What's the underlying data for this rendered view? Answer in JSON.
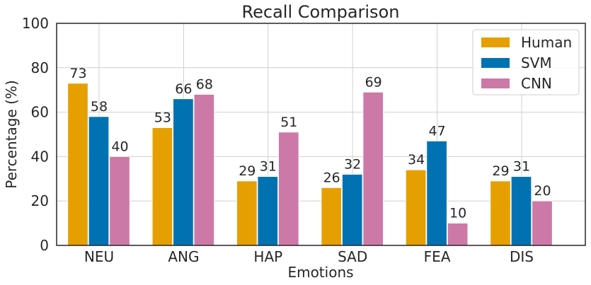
{
  "chart_data": {
    "type": "bar",
    "title": "Recall Comparison",
    "xlabel": "Emotions",
    "ylabel": "Percentage (%)",
    "categories": [
      "NEU",
      "ANG",
      "HAP",
      "SAD",
      "FEA",
      "DIS"
    ],
    "series": [
      {
        "name": "Human",
        "color": "#e69f00",
        "values": [
          73,
          53,
          29,
          26,
          34,
          29
        ]
      },
      {
        "name": "SVM",
        "color": "#0072b2",
        "values": [
          58,
          66,
          31,
          32,
          47,
          31
        ]
      },
      {
        "name": "CNN",
        "color": "#cc79a7",
        "values": [
          40,
          68,
          51,
          69,
          10,
          20
        ]
      }
    ],
    "ylim": [
      0,
      100
    ],
    "yticks": [
      0,
      20,
      40,
      60,
      80,
      100
    ],
    "grid": true,
    "legend_position": "top-right",
    "data_labels": true
  }
}
